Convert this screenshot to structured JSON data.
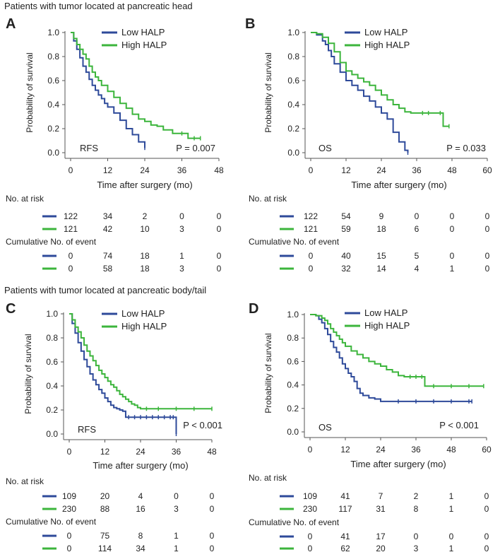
{
  "section_titles": [
    "Patients with tumor located at pancreatic head",
    "Patients with tumor located at pancreatic body/tail"
  ],
  "colors": {
    "low": "#2e4a9a",
    "high": "#3cb53c",
    "axis": "#555555"
  },
  "common": {
    "ylabel": "Probability of survival",
    "xlabel": "Time after surgery (mo)",
    "legend": [
      "Low HALP",
      "High HALP"
    ],
    "risk_title": "No. at risk",
    "event_title": "Cumulative No. of event"
  },
  "chart_data": [
    {
      "panel": "A",
      "type": "line",
      "endpoint": "RFS",
      "pvalue": "P = 0.007",
      "xlim": [
        0,
        48
      ],
      "ylim": [
        0,
        1
      ],
      "xticks": [
        "0",
        "12",
        "24",
        "36",
        "48"
      ],
      "yticks": [
        "0.0",
        "0.2",
        "0.4",
        "0.6",
        "0.8",
        "1.0"
      ],
      "series": [
        {
          "name": "Low HALP",
          "x": [
            0,
            1,
            2,
            3,
            4,
            5,
            6,
            7,
            8,
            9,
            10,
            11,
            12,
            14,
            16,
            18,
            20,
            22,
            24
          ],
          "y": [
            1.0,
            0.93,
            0.86,
            0.79,
            0.72,
            0.67,
            0.61,
            0.56,
            0.52,
            0.48,
            0.45,
            0.41,
            0.38,
            0.33,
            0.27,
            0.2,
            0.15,
            0.09,
            0.04
          ]
        },
        {
          "name": "High HALP",
          "x": [
            0,
            1,
            2,
            3,
            4,
            5,
            6,
            7,
            8,
            9,
            10,
            12,
            14,
            16,
            18,
            20,
            22,
            24,
            26,
            28,
            30,
            33,
            36,
            38,
            40,
            42
          ],
          "y": [
            1.0,
            0.95,
            0.9,
            0.86,
            0.82,
            0.78,
            0.72,
            0.67,
            0.63,
            0.6,
            0.56,
            0.51,
            0.46,
            0.41,
            0.37,
            0.32,
            0.28,
            0.26,
            0.23,
            0.22,
            0.19,
            0.16,
            0.16,
            0.12,
            0.12,
            0.12
          ]
        }
      ],
      "risk": [
        [
          "122",
          "34",
          "2",
          "0",
          "0"
        ],
        [
          "121",
          "42",
          "10",
          "3",
          "0"
        ]
      ],
      "events": [
        [
          "0",
          "74",
          "18",
          "1",
          "0"
        ],
        [
          "0",
          "58",
          "18",
          "3",
          "0"
        ]
      ]
    },
    {
      "panel": "B",
      "type": "line",
      "endpoint": "OS",
      "pvalue": "P = 0.033",
      "xlim": [
        0,
        60
      ],
      "ylim": [
        0,
        1
      ],
      "xticks": [
        "0",
        "12",
        "24",
        "36",
        "48",
        "60"
      ],
      "yticks": [
        "0.0",
        "0.2",
        "0.4",
        "0.6",
        "0.8",
        "1.0"
      ],
      "series": [
        {
          "name": "Low HALP",
          "x": [
            0,
            2,
            4,
            5,
            6,
            7,
            8,
            10,
            12,
            14,
            16,
            18,
            20,
            22,
            24,
            26,
            28,
            30,
            32,
            33
          ],
          "y": [
            1.0,
            0.98,
            0.93,
            0.9,
            0.85,
            0.8,
            0.74,
            0.67,
            0.6,
            0.56,
            0.52,
            0.47,
            0.43,
            0.38,
            0.33,
            0.28,
            0.17,
            0.09,
            0.02,
            0.0
          ]
        },
        {
          "name": "High HALP",
          "x": [
            0,
            2,
            4,
            6,
            8,
            10,
            12,
            14,
            16,
            18,
            20,
            22,
            24,
            26,
            28,
            30,
            32,
            34,
            38,
            40,
            44,
            45,
            47
          ],
          "y": [
            1.0,
            0.99,
            0.96,
            0.91,
            0.84,
            0.75,
            0.68,
            0.65,
            0.62,
            0.59,
            0.56,
            0.52,
            0.48,
            0.44,
            0.4,
            0.37,
            0.34,
            0.33,
            0.33,
            0.33,
            0.33,
            0.22,
            0.22
          ]
        }
      ],
      "risk": [
        [
          "122",
          "54",
          "9",
          "0",
          "0",
          "0"
        ],
        [
          "121",
          "59",
          "18",
          "6",
          "0",
          "0"
        ]
      ],
      "events": [
        [
          "0",
          "40",
          "15",
          "5",
          "0",
          "0"
        ],
        [
          "0",
          "32",
          "14",
          "4",
          "1",
          "0"
        ]
      ]
    },
    {
      "panel": "C",
      "type": "line",
      "endpoint": "RFS",
      "pvalue": "P < 0.001",
      "xlim": [
        0,
        48
      ],
      "ylim": [
        0,
        1
      ],
      "xticks": [
        "0",
        "12",
        "24",
        "36",
        "48"
      ],
      "yticks": [
        "0.0",
        "0.2",
        "0.4",
        "0.6",
        "0.8",
        "1.0"
      ],
      "series": [
        {
          "name": "Low HALP",
          "x": [
            0,
            1,
            2,
            3,
            4,
            5,
            6,
            7,
            8,
            9,
            10,
            11,
            12,
            13,
            14,
            15,
            16,
            17,
            18,
            19,
            20,
            22,
            24,
            26,
            28,
            30,
            32,
            34,
            35,
            36
          ],
          "y": [
            1.0,
            0.92,
            0.84,
            0.76,
            0.69,
            0.62,
            0.56,
            0.5,
            0.45,
            0.41,
            0.37,
            0.34,
            0.3,
            0.27,
            0.24,
            0.22,
            0.21,
            0.2,
            0.19,
            0.14,
            0.14,
            0.14,
            0.14,
            0.14,
            0.14,
            0.14,
            0.14,
            0.14,
            0.14,
            0.0
          ]
        },
        {
          "name": "High HALP",
          "x": [
            0,
            1,
            2,
            3,
            4,
            5,
            6,
            7,
            8,
            9,
            10,
            11,
            12,
            13,
            14,
            15,
            16,
            17,
            18,
            19,
            20,
            21,
            22,
            23,
            24,
            26,
            30,
            36,
            42,
            48
          ],
          "y": [
            1.0,
            0.95,
            0.89,
            0.85,
            0.8,
            0.74,
            0.69,
            0.65,
            0.61,
            0.57,
            0.53,
            0.5,
            0.47,
            0.44,
            0.41,
            0.39,
            0.36,
            0.33,
            0.31,
            0.29,
            0.27,
            0.25,
            0.24,
            0.22,
            0.21,
            0.21,
            0.21,
            0.21,
            0.21,
            0.21
          ]
        }
      ],
      "risk": [
        [
          "109",
          "20",
          "4",
          "0",
          "0"
        ],
        [
          "230",
          "88",
          "16",
          "3",
          "0"
        ]
      ],
      "events": [
        [
          "0",
          "75",
          "8",
          "1",
          "0"
        ],
        [
          "0",
          "114",
          "34",
          "1",
          "0"
        ]
      ]
    },
    {
      "panel": "D",
      "type": "line",
      "endpoint": "OS",
      "pvalue": "P < 0.001",
      "xlim": [
        0,
        60
      ],
      "ylim": [
        0,
        1
      ],
      "xticks": [
        "0",
        "12",
        "24",
        "36",
        "48",
        "60"
      ],
      "yticks": [
        "0.0",
        "0.2",
        "0.4",
        "0.6",
        "0.8",
        "1.0"
      ],
      "series": [
        {
          "name": "Low HALP",
          "x": [
            0,
            2,
            3,
            4,
            5,
            6,
            7,
            8,
            9,
            10,
            11,
            12,
            13,
            14,
            15,
            16,
            17,
            18,
            20,
            22,
            24,
            30,
            36,
            42,
            48,
            54,
            55
          ],
          "y": [
            1.0,
            0.99,
            0.96,
            0.93,
            0.88,
            0.83,
            0.77,
            0.72,
            0.68,
            0.63,
            0.58,
            0.54,
            0.5,
            0.47,
            0.43,
            0.37,
            0.33,
            0.31,
            0.29,
            0.28,
            0.26,
            0.26,
            0.26,
            0.26,
            0.26,
            0.26,
            0.26
          ]
        },
        {
          "name": "High HALP",
          "x": [
            0,
            2,
            4,
            5,
            6,
            7,
            8,
            9,
            10,
            11,
            12,
            14,
            16,
            18,
            20,
            22,
            24,
            26,
            28,
            30,
            32,
            34,
            36,
            38,
            39,
            42,
            48,
            54,
            59
          ],
          "y": [
            1.0,
            0.99,
            0.97,
            0.95,
            0.92,
            0.88,
            0.85,
            0.82,
            0.79,
            0.76,
            0.73,
            0.69,
            0.66,
            0.63,
            0.6,
            0.58,
            0.56,
            0.53,
            0.51,
            0.48,
            0.47,
            0.47,
            0.47,
            0.47,
            0.39,
            0.39,
            0.39,
            0.39,
            0.39
          ]
        }
      ],
      "risk": [
        [
          "109",
          "41",
          "7",
          "2",
          "1",
          "0"
        ],
        [
          "230",
          "117",
          "31",
          "8",
          "1",
          "0"
        ]
      ],
      "events": [
        [
          "0",
          "41",
          "17",
          "0",
          "0",
          "0"
        ],
        [
          "0",
          "62",
          "20",
          "3",
          "1",
          "0"
        ]
      ]
    }
  ]
}
